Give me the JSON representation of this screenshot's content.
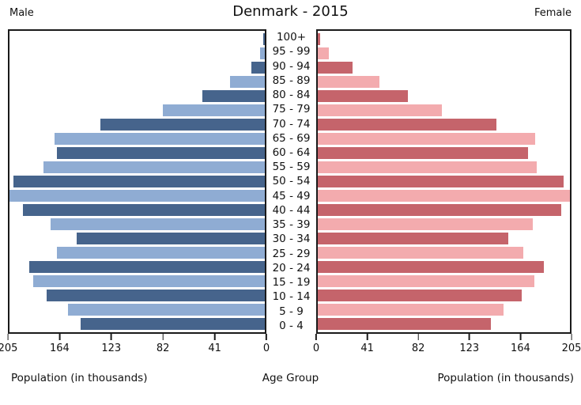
{
  "header": {
    "left_label": "Male",
    "title": "Denmark - 2015",
    "right_label": "Female"
  },
  "footer": {
    "left_axis_label": "Population (in thousands)",
    "center_label": "Age Group",
    "right_axis_label": "Population (in thousands)"
  },
  "axis": {
    "male_ticks": [
      "205",
      "164",
      "123",
      "82",
      "41",
      "0"
    ],
    "female_ticks": [
      "0",
      "41",
      "82",
      "123",
      "164",
      "205"
    ]
  },
  "colors": {
    "male_dark": "#46648C",
    "male_light": "#8FACD3",
    "female_dark": "#C5646B",
    "female_light": "#F3ABAE"
  },
  "chart_data": {
    "type": "bar",
    "subtype": "population-pyramid",
    "title": "Denmark - 2015",
    "unit": "thousands",
    "xlabel_left": "Population (in thousands)",
    "xlabel_right": "Population (in thousands)",
    "ylabel": "Age Group",
    "xlim": [
      0,
      205
    ],
    "grid": false,
    "age_groups": [
      "100+",
      "95 - 99",
      "90 - 94",
      "85 - 89",
      "80 - 84",
      "75 - 79",
      "70 - 74",
      "65 - 69",
      "60 - 64",
      "55 - 59",
      "50 - 54",
      "45 - 49",
      "40 - 44",
      "35 - 39",
      "30 - 34",
      "25 - 29",
      "20 - 24",
      "15 - 19",
      "10 - 14",
      "5 - 9",
      "0 - 4"
    ],
    "series": [
      {
        "name": "Male",
        "side": "left",
        "values": [
          1,
          4,
          11,
          28,
          50,
          82,
          132,
          169,
          167,
          178,
          202,
          205,
          194,
          172,
          151,
          167,
          189,
          186,
          175,
          158,
          148
        ]
      },
      {
        "name": "Female",
        "side": "right",
        "values": [
          2,
          9,
          28,
          50,
          73,
          101,
          145,
          177,
          171,
          178,
          200,
          205,
          198,
          175,
          155,
          167,
          184,
          176,
          166,
          151,
          141
        ]
      }
    ]
  }
}
